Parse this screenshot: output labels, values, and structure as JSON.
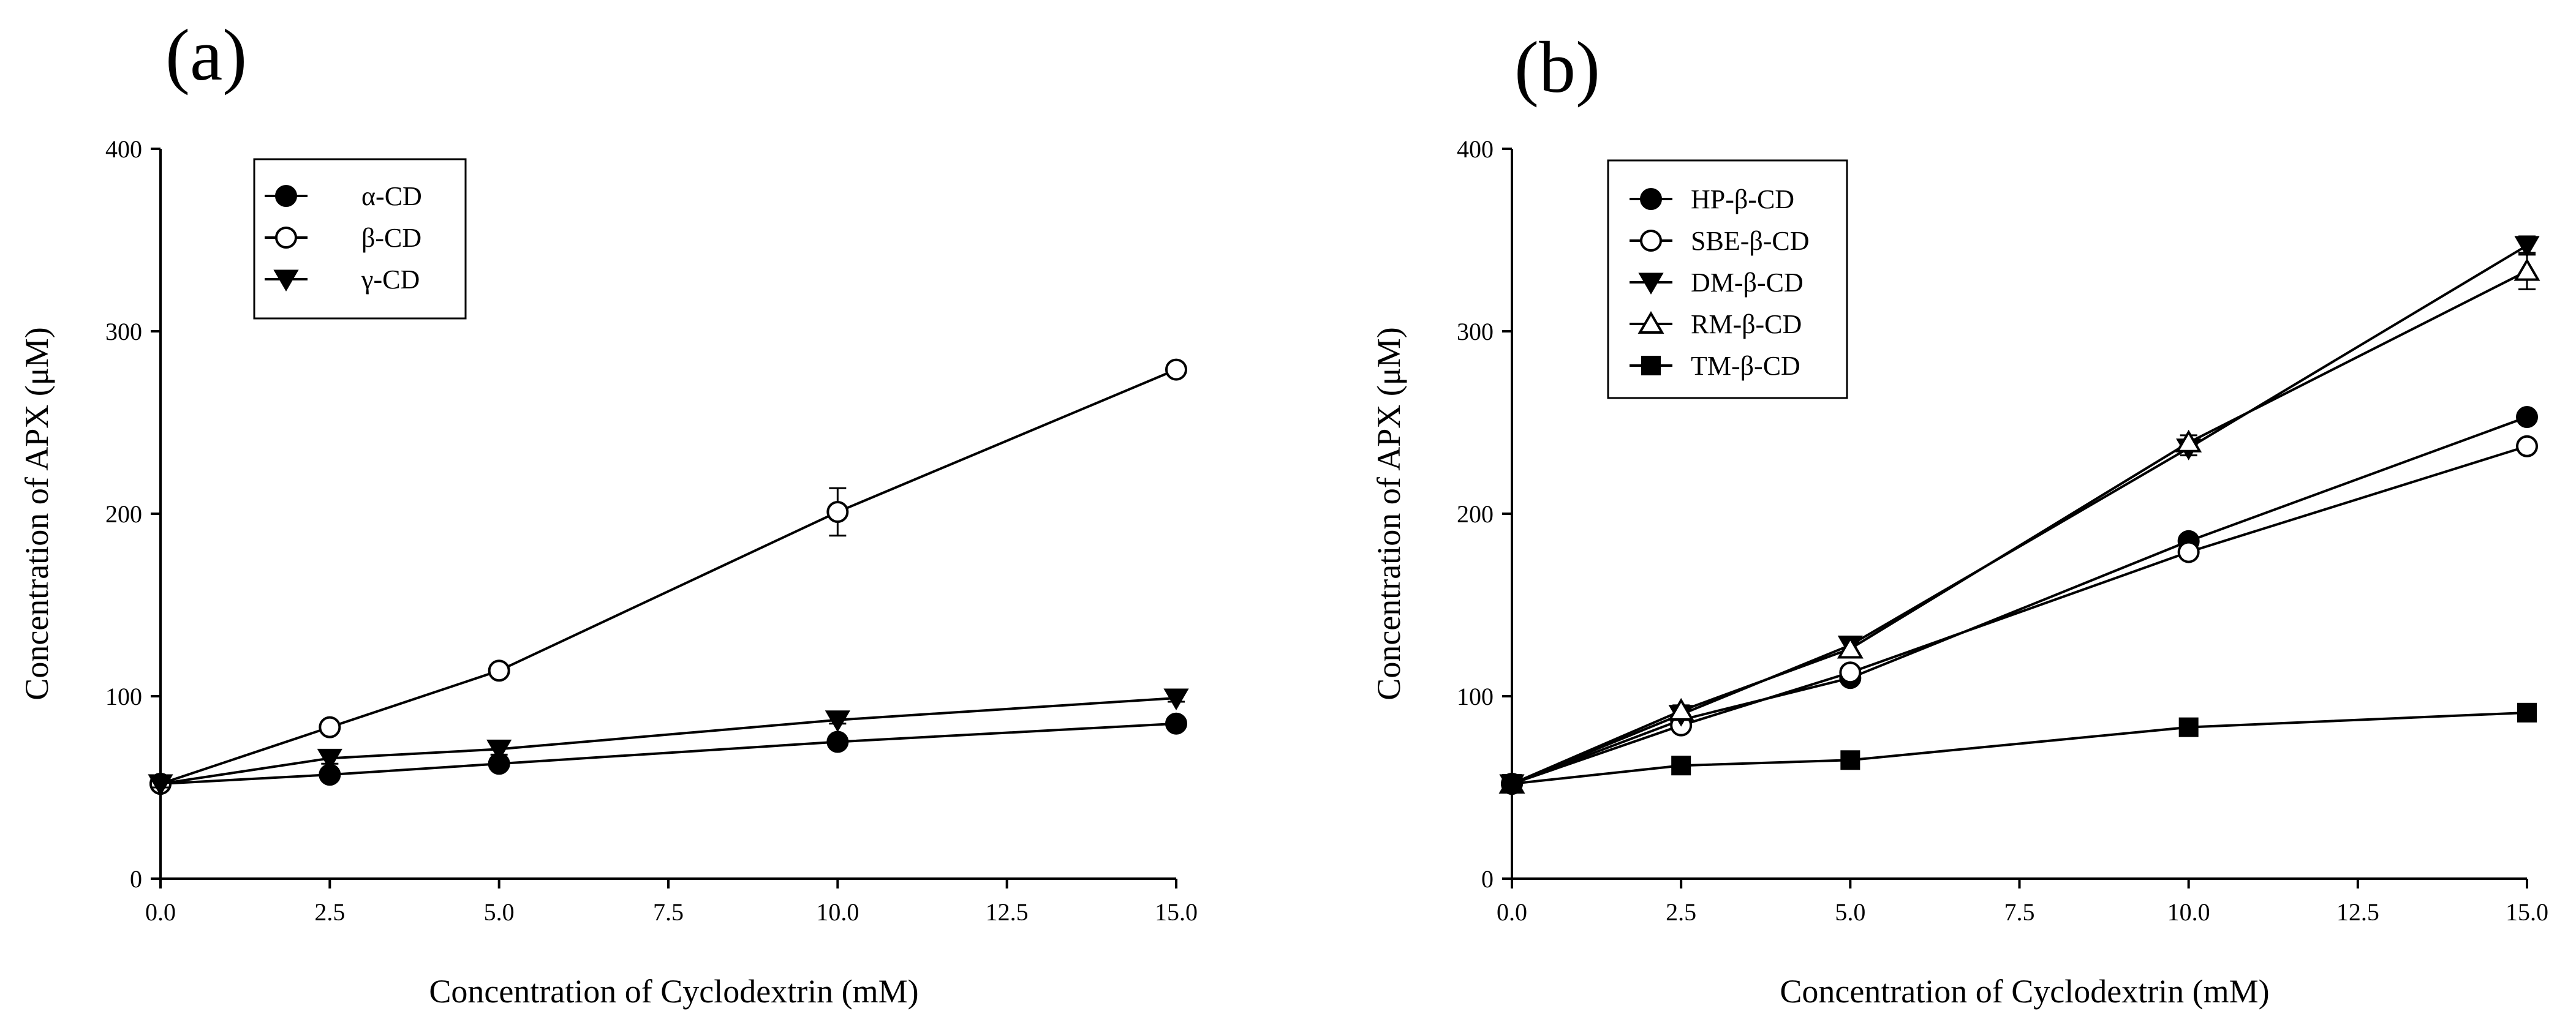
{
  "chart_data": [
    {
      "panel_label": "(a)",
      "type": "line",
      "xlabel": "Concentration of Cyclodextrin (mM)",
      "ylabel": "Concentration of APX (μM)",
      "xlim": [
        0,
        15
      ],
      "ylim": [
        0,
        400
      ],
      "x_ticks": [
        "0.0",
        "2.5",
        "5.0",
        "7.5",
        "10.0",
        "12.5",
        "15.0"
      ],
      "y_ticks": [
        "0",
        "100",
        "200",
        "300",
        "400"
      ],
      "x": [
        0,
        2.5,
        5,
        10,
        15
      ],
      "legend_position": "top-left",
      "grid": false,
      "series": [
        {
          "name": "α-CD",
          "marker": "circle-filled",
          "values": [
            52,
            57,
            63,
            75,
            85
          ],
          "errors": [
            2,
            2,
            2,
            2,
            2
          ]
        },
        {
          "name": "β-CD",
          "marker": "circle-open",
          "values": [
            52,
            83,
            114,
            201,
            279
          ],
          "errors": [
            2,
            3,
            3,
            13,
            3
          ]
        },
        {
          "name": "γ-CD",
          "marker": "triangle-down-filled",
          "values": [
            52,
            66,
            71,
            87,
            99
          ],
          "errors": [
            2,
            3,
            3,
            2,
            2
          ]
        }
      ]
    },
    {
      "panel_label": "(b)",
      "type": "line",
      "xlabel": "Concentration of Cyclodextrin (mM)",
      "ylabel": "Concentration of APX (μM)",
      "xlim": [
        0,
        15
      ],
      "ylim": [
        0,
        400
      ],
      "x_ticks": [
        "0.0",
        "2.5",
        "5.0",
        "7.5",
        "10.0",
        "12.5",
        "15.0"
      ],
      "y_ticks": [
        "0",
        "100",
        "200",
        "300",
        "400"
      ],
      "x": [
        0,
        2.5,
        5,
        10,
        15
      ],
      "legend_position": "top-left",
      "grid": false,
      "series": [
        {
          "name": "HP-β-CD",
          "marker": "circle-filled",
          "values": [
            52,
            87,
            110,
            185,
            253
          ],
          "errors": [
            2,
            2,
            3,
            3,
            3
          ]
        },
        {
          "name": "SBE-β-CD",
          "marker": "circle-open",
          "values": [
            52,
            84,
            113,
            179,
            237
          ],
          "errors": [
            2,
            2,
            3,
            3,
            3
          ]
        },
        {
          "name": "DM-β-CD",
          "marker": "triangle-down-filled",
          "values": [
            52,
            90,
            128,
            236,
            347
          ],
          "errors": [
            2,
            3,
            4,
            4,
            5
          ]
        },
        {
          "name": "RM-β-CD",
          "marker": "triangle-up-open",
          "values": [
            52,
            92,
            126,
            239,
            333
          ],
          "errors": [
            2,
            3,
            4,
            4,
            10
          ]
        },
        {
          "name": "TM-β-CD",
          "marker": "square-filled",
          "values": [
            52,
            62,
            65,
            83,
            91
          ],
          "errors": [
            2,
            2,
            2,
            2,
            2
          ]
        }
      ]
    }
  ]
}
